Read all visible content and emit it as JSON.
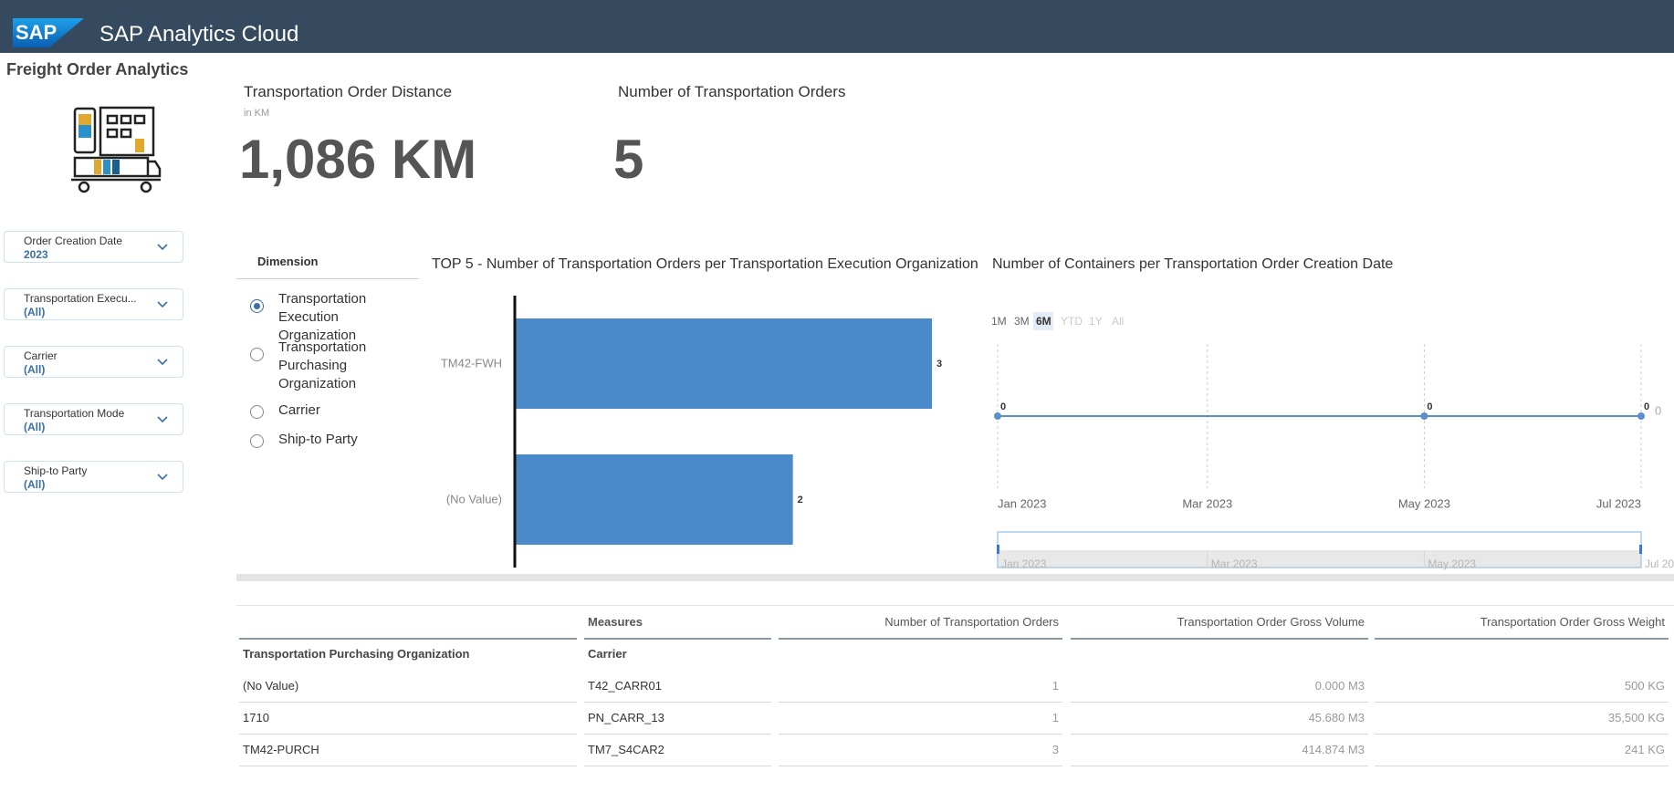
{
  "header": {
    "logo": "SAP",
    "title": "SAP Analytics Cloud"
  },
  "sidebar": {
    "title": "Freight Order Analytics",
    "filters": [
      {
        "label": "Order Creation Date",
        "value": "2023"
      },
      {
        "label": "Transportation Execu...",
        "value": "(All)"
      },
      {
        "label": "Carrier",
        "value": "(All)"
      },
      {
        "label": "Transportation Mode",
        "value": "(All)"
      },
      {
        "label": "Ship-to Party",
        "value": "(All)"
      }
    ]
  },
  "kpis": [
    {
      "title": "Transportation Order Distance",
      "subtitle": "in KM",
      "value": "1,086 KM"
    },
    {
      "title": "Number of Transportation Orders",
      "value": "5"
    }
  ],
  "dimension": {
    "title": "Dimension",
    "options": [
      "Transportation Execution Organization",
      "Transportation Purchasing Organization",
      "Carrier",
      "Ship-to Party"
    ],
    "selected": 0
  },
  "chart_data": [
    {
      "type": "bar",
      "orientation": "horizontal",
      "title": "TOP 5 - Number of Transportation Orders per Transportation Execution Organization",
      "categories": [
        "TM42-FWH",
        "(No Value)"
      ],
      "values": [
        3,
        2
      ],
      "color": "#4a8acb"
    },
    {
      "type": "line",
      "title": "Number of Containers per Transportation Order Creation Date",
      "range_buttons": [
        "1M",
        "3M",
        "6M",
        "YTD",
        "1Y",
        "All"
      ],
      "selected_range": "6M",
      "x": [
        "Jan 2023",
        "May 2023",
        "Jul 2023"
      ],
      "values": [
        0,
        0,
        0
      ],
      "color": "#5b8fc9",
      "xticks": [
        "Jan 2023",
        "Mar 2023",
        "May 2023",
        "Jul 2023"
      ],
      "yticks": [
        0
      ]
    }
  ],
  "table": {
    "header": [
      "Measures",
      "Number of Transportation Orders",
      "Transportation Order Gross Volume",
      "Transportation Order Gross Weight"
    ],
    "columns": [
      "Transportation Purchasing Organization",
      "Carrier"
    ],
    "rows": [
      [
        "(No Value)",
        "T42_CARR01",
        "1",
        "0.000 M3",
        "500 KG"
      ],
      [
        "1710",
        "PN_CARR_13",
        "1",
        "45.680 M3",
        "35,500 KG"
      ],
      [
        "TM42-PURCH",
        "TM7_S4CAR2",
        "3",
        "414.874 M3",
        "241 KG"
      ]
    ]
  }
}
